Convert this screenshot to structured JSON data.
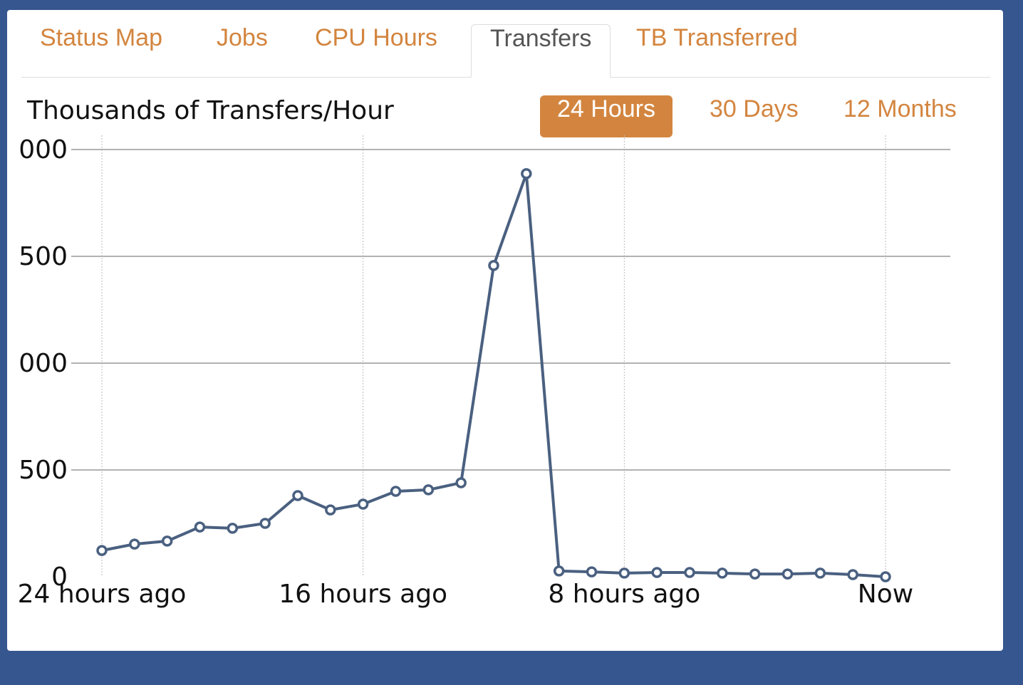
{
  "tabs": [
    "Status Map",
    "Jobs",
    "CPU Hours",
    "Transfers",
    "TB Transferred"
  ],
  "active_tab": "Transfers",
  "range_buttons": [
    "24 Hours",
    "30 Days",
    "12 Months"
  ],
  "active_range": "24 Hours",
  "chart_data": {
    "type": "line",
    "title": "Thousands of Transfers/Hour",
    "x": [
      -24,
      -23,
      -22,
      -21,
      -20,
      -19,
      -18,
      -17,
      -16,
      -15,
      -14,
      -13,
      -12,
      -11,
      -10,
      -9,
      -8,
      -7,
      -6,
      -5,
      -4,
      -3,
      -2,
      -1,
      0
    ],
    "series": [
      {
        "name": "Transfers",
        "color": "#4a6080",
        "values": [
          123,
          153,
          167,
          233,
          227,
          250,
          380,
          313,
          340,
          400,
          407,
          440,
          1457,
          1887,
          27,
          23,
          17,
          20,
          20,
          17,
          13,
          13,
          17,
          10,
          0
        ]
      }
    ],
    "xlim": [
      -24,
      0
    ],
    "xticks": [
      {
        "value": -24,
        "label": "24 hours ago"
      },
      {
        "value": -16,
        "label": "16 hours ago"
      },
      {
        "value": -8,
        "label": "8 hours ago"
      },
      {
        "value": 0,
        "label": "Now"
      }
    ],
    "ylim": [
      0,
      2000
    ],
    "yticks": [
      0,
      {
        "value": 500,
        "label": "500"
      },
      {
        "value": 1000,
        "label": "000"
      },
      {
        "value": 1500,
        "label": "500"
      },
      {
        "value": 2000,
        "label": "000"
      }
    ],
    "grid": true
  }
}
